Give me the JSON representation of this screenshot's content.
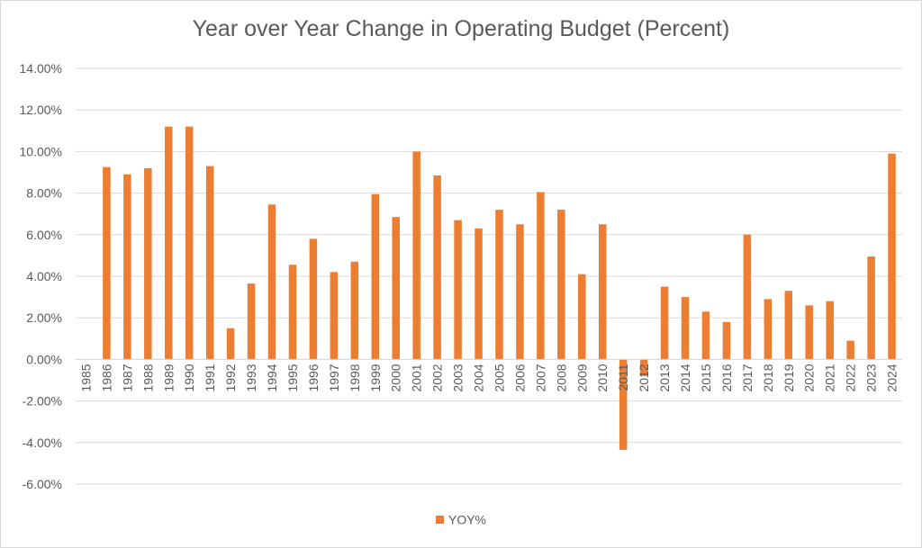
{
  "chart_data": {
    "type": "bar",
    "title": "Year over Year Change in Operating Budget (Percent)",
    "xlabel": "",
    "ylabel": "",
    "ylim": [
      -6,
      14
    ],
    "yticks": [
      -6,
      -4,
      -2,
      0,
      2,
      4,
      6,
      8,
      10,
      12,
      14
    ],
    "ytick_labels": [
      "-6.00%",
      "-4.00%",
      "-2.00%",
      "0.00%",
      "2.00%",
      "4.00%",
      "6.00%",
      "8.00%",
      "10.00%",
      "12.00%",
      "14.00%"
    ],
    "grid": true,
    "legend_position": "bottom",
    "bar_color": "#ED7D31",
    "categories": [
      "1985",
      "1986",
      "1987",
      "1988",
      "1989",
      "1990",
      "1991",
      "1992",
      "1993",
      "1994",
      "1995",
      "1996",
      "1997",
      "1998",
      "1999",
      "2000",
      "2001",
      "2002",
      "2003",
      "2004",
      "2005",
      "2006",
      "2007",
      "2008",
      "2009",
      "2010",
      "2011",
      "2012",
      "2013",
      "2014",
      "2015",
      "2016",
      "2017",
      "2018",
      "2019",
      "2020",
      "2021",
      "2022",
      "2023",
      "2024"
    ],
    "series": [
      {
        "name": "YOY%",
        "values": [
          null,
          9.25,
          8.9,
          9.2,
          11.2,
          11.2,
          9.3,
          1.5,
          3.65,
          7.45,
          4.55,
          5.8,
          4.2,
          4.7,
          7.95,
          6.85,
          10.0,
          8.85,
          6.7,
          6.3,
          7.2,
          6.5,
          8.05,
          7.2,
          4.1,
          6.5,
          -4.35,
          -0.8,
          3.5,
          3.0,
          2.3,
          1.8,
          6.0,
          2.9,
          3.3,
          2.6,
          2.8,
          0.9,
          4.95,
          9.9
        ]
      }
    ]
  }
}
